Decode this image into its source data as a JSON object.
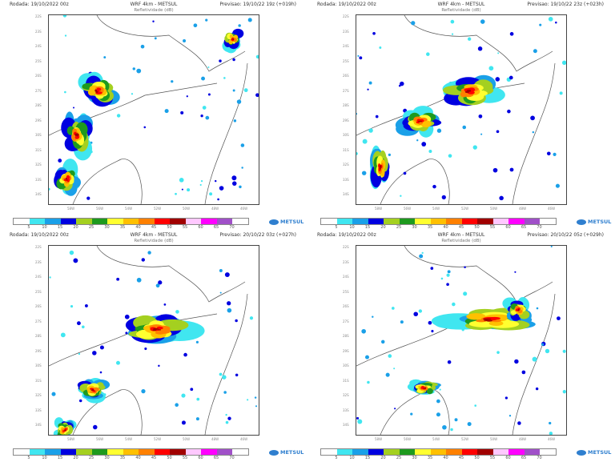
{
  "panels": [
    {
      "run": "Rodada: 19/10/2022 00z",
      "title": "WRF 4km - METSUL",
      "subtitle": "Refletividade (dB)",
      "forecast": "Previsao: 19/10/22 19z (+019h)"
    },
    {
      "run": "Rodada: 19/10/2022 00z",
      "title": "WRF 4km - METSUL",
      "subtitle": "Refletividade (dB)",
      "forecast": "Previsao: 19/10/22 23z (+023h)"
    },
    {
      "run": "Rodada: 19/10/2022 00z",
      "title": "WRF 4km - METSUL",
      "subtitle": "Refletividade (dB)",
      "forecast": "Previsao: 20/10/22 03z (+027h)"
    },
    {
      "run": "Rodada: 19/10/2022 00z",
      "title": "WRF 4km - METSUL",
      "subtitle": "Refletividade (dB)",
      "forecast": "Previsao: 20/10/22 05z (+029h)"
    }
  ],
  "lat_labels": [
    "22S",
    "23S",
    "24S",
    "25S",
    "26S",
    "27S",
    "28S",
    "29S",
    "30S",
    "31S",
    "32S",
    "33S",
    "34S"
  ],
  "lon_labels": [
    "58W",
    "56W",
    "54W",
    "52W",
    "50W",
    "48W",
    "46W"
  ],
  "colorbar": {
    "labels": [
      "5",
      "10",
      "15",
      "20",
      "25",
      "30",
      "35",
      "40",
      "45",
      "50",
      "55",
      "60",
      "65",
      "70"
    ],
    "colors": [
      "#ffffff",
      "#40e6f0",
      "#1aa0e8",
      "#0000e0",
      "#a4d020",
      "#1e9a1e",
      "#ffff30",
      "#ffc000",
      "#ff8000",
      "#ff0000",
      "#a00000",
      "#ffc8ff",
      "#ff00ff",
      "#a050c8",
      "#ffffff"
    ]
  },
  "logo": "METSUL"
}
